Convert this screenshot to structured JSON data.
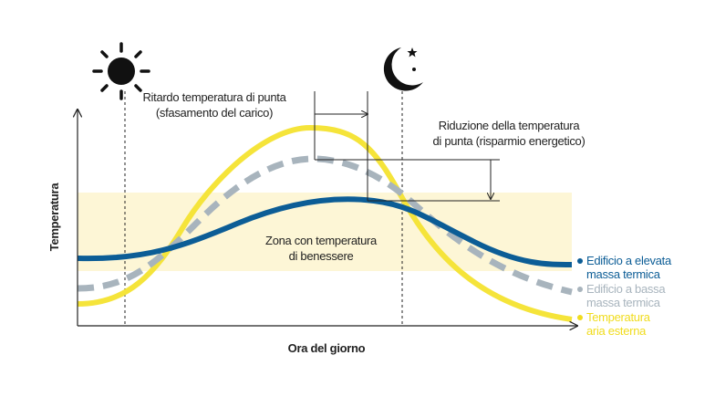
{
  "diagram": {
    "y_axis_label": "Temperatura",
    "x_axis_label": "Ora del giorno",
    "annotations": [
      {
        "lines": [
          "Ritardo temperatura di punta",
          "(sfasamento del carico)"
        ]
      },
      {
        "lines": [
          "Riduzione della temperatura",
          "di punta (risparmio energetico)"
        ]
      },
      {
        "lines": [
          "Zona con temperatura",
          "di benessere"
        ]
      }
    ],
    "legend": [
      {
        "lines": [
          "Edificio a elevata",
          "massa termica"
        ],
        "color": "#0c5d96"
      },
      {
        "lines": [
          "Edificio a bassa",
          "massa termica"
        ],
        "color": "#a8b4bd"
      },
      {
        "lines": [
          "Temperatura",
          "aria esterna"
        ],
        "color": "#f0dc1e"
      }
    ]
  }
}
